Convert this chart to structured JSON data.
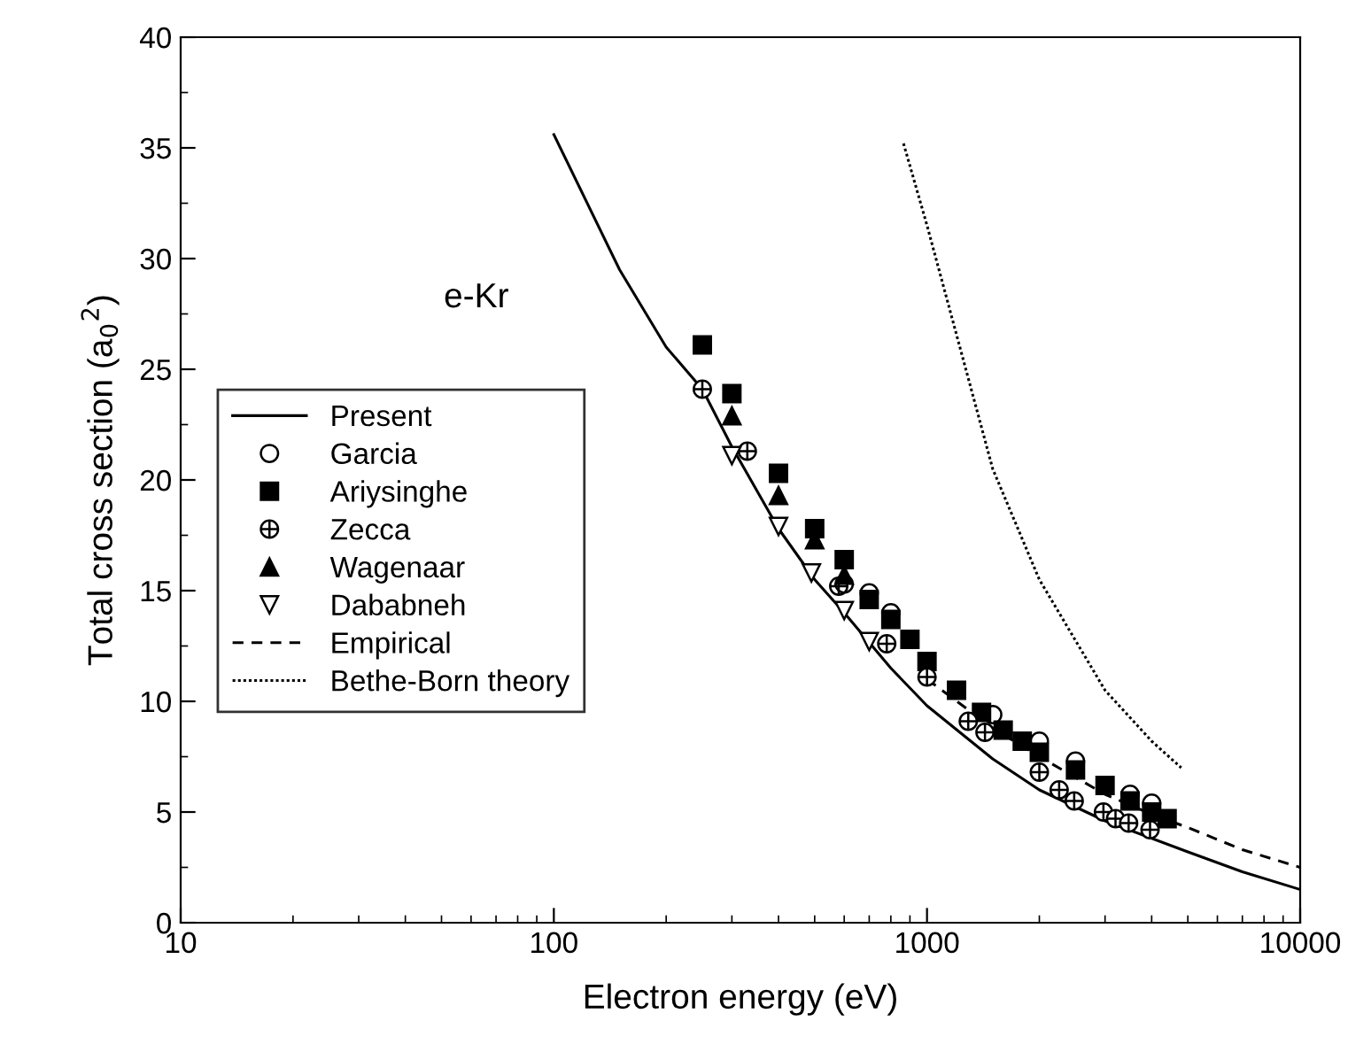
{
  "chart_data": {
    "type": "scatter",
    "xlabel": "Electron energy (eV)",
    "ylabel": "Total cross section (a$_{0}$$^{2}$)",
    "annotations": [
      "e-Kr"
    ],
    "log": "x",
    "xlim": [
      10,
      10000
    ],
    "xticks": [
      10,
      100,
      1000,
      10000
    ],
    "ylim": [
      0,
      40
    ],
    "yticks": [
      0,
      5,
      10,
      15,
      20,
      25,
      30,
      35,
      40
    ],
    "grid": false,
    "legend": "left",
    "series": [
      {
        "name": "Present",
        "type": "line",
        "color": "#000000",
        "line_style": "solid",
        "marker": "none",
        "x": [
          100,
          150,
          200,
          250,
          300,
          400,
          500,
          600,
          800,
          1000,
          1500,
          2000,
          3000,
          5000,
          7000,
          10000
        ],
        "values": [
          35.6,
          29.5,
          26.0,
          24.1,
          21.5,
          17.8,
          15.5,
          14.0,
          11.5,
          9.8,
          7.4,
          6.0,
          4.6,
          3.2,
          2.3,
          1.5
        ]
      },
      {
        "name": "Garcia",
        "color": "#000000",
        "marker": "circle",
        "x": [
          600,
          700,
          800,
          1500,
          2000,
          2500,
          3500,
          4000
        ],
        "values": [
          15.3,
          14.9,
          14.0,
          9.4,
          8.2,
          7.3,
          5.8,
          5.4
        ]
      },
      {
        "name": "Ariysinghe",
        "color": "#000000",
        "marker": "square",
        "x": [
          250,
          300,
          400,
          500,
          600,
          700,
          800,
          900,
          1000,
          1200,
          1400,
          1600,
          1800,
          2000,
          2500,
          3000,
          3500,
          4000,
          4400
        ],
        "values": [
          26.1,
          23.9,
          20.3,
          17.8,
          16.4,
          14.6,
          13.7,
          12.8,
          11.8,
          10.5,
          9.5,
          8.7,
          8.2,
          7.7,
          6.9,
          6.2,
          5.5,
          5.0,
          4.7
        ]
      },
      {
        "name": "Zecca",
        "color": "#000000",
        "marker": "cross",
        "x": [
          250,
          330,
          580,
          780,
          1000,
          1290,
          1430,
          2000,
          2260,
          2480,
          2970,
          3200,
          3470,
          3960
        ],
        "values": [
          24.1,
          21.3,
          15.2,
          12.6,
          11.1,
          9.1,
          8.6,
          6.8,
          6.0,
          5.5,
          5.0,
          4.7,
          4.5,
          4.2
        ]
      },
      {
        "name": "Wagenaar",
        "color": "#000000",
        "marker": "triangle",
        "x": [
          300,
          400,
          500,
          600
        ],
        "values": [
          22.9,
          19.3,
          17.3,
          15.7
        ]
      },
      {
        "name": "Dababneh",
        "color": "#000000",
        "marker": "triangle_down",
        "x": [
          300,
          400,
          490,
          600,
          700
        ],
        "values": [
          21.1,
          17.9,
          15.8,
          14.1,
          12.7
        ]
      },
      {
        "name": "Empirical",
        "type": "line",
        "color": "#000000",
        "line_style": "dashed",
        "marker": "none",
        "x": [
          1000,
          1500,
          2000,
          3000,
          4000,
          5000,
          7000,
          10000
        ],
        "values": [
          11.0,
          8.8,
          7.5,
          5.8,
          4.9,
          4.3,
          3.3,
          2.5
        ]
      },
      {
        "name": "Bethe-Born theory",
        "type": "line",
        "color": "#000000",
        "line_style": "dotted",
        "marker": "none",
        "x": [
          865,
          1000,
          1500,
          2000,
          3000,
          4000,
          4800
        ],
        "values": [
          35.2,
          31.5,
          20.5,
          15.5,
          10.5,
          8.2,
          7.0
        ]
      }
    ]
  }
}
